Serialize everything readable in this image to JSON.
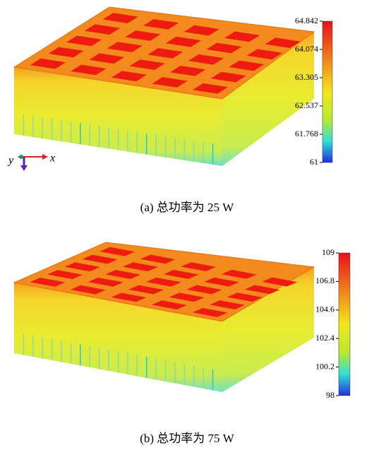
{
  "panels": [
    {
      "caption": "(a)  总功率为 25 W",
      "colorbar": {
        "ticks": [
          "64.842",
          "64.074",
          "63.305",
          "62.537",
          "61.768",
          "61"
        ]
      },
      "axis_labels": {
        "y": "y",
        "x": "x"
      }
    },
    {
      "caption": "(b)  总功率为 75 W",
      "colorbar": {
        "ticks": [
          "109",
          "106.8",
          "104.6",
          "102.4",
          "100.2",
          "98"
        ]
      }
    }
  ]
}
